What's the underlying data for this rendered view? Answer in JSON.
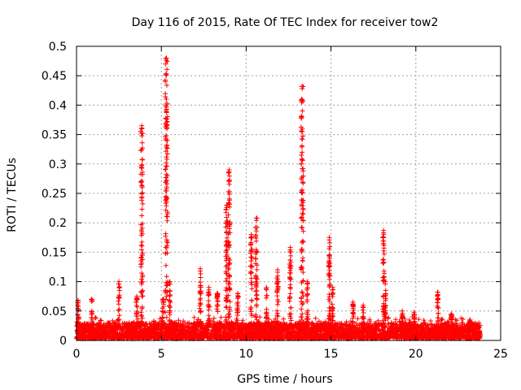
{
  "chart_data": {
    "type": "scatter",
    "title": "Day 116 of 2015, Rate Of TEC Index for receiver tow2",
    "xlabel": "GPS time / hours",
    "ylabel": "ROTI / TECUs",
    "xlim": [
      0,
      25
    ],
    "ylim": [
      0,
      0.5
    ],
    "xticks": [
      "0",
      "5",
      "10",
      "15",
      "20",
      "25"
    ],
    "yticks": [
      "0",
      "0.05",
      "0.1",
      "0.15",
      "0.2",
      "0.25",
      "0.3",
      "0.35",
      "0.4",
      "0.45",
      "0.5"
    ],
    "grid": true,
    "marker": "+",
    "series_color": "#ff0000",
    "baseline_band": {
      "x_start": 0,
      "x_end": 23.8,
      "y_min": 0.003,
      "y_max": 0.03
    },
    "peaks": [
      {
        "x": 0.1,
        "y": 0.068
      },
      {
        "x": 0.9,
        "y": 0.07
      },
      {
        "x": 2.5,
        "y": 0.1
      },
      {
        "x": 3.55,
        "y": 0.075
      },
      {
        "x": 3.85,
        "y": 0.365
      },
      {
        "x": 5.1,
        "y": 0.07
      },
      {
        "x": 5.3,
        "y": 0.48
      },
      {
        "x": 5.5,
        "y": 0.1
      },
      {
        "x": 7.3,
        "y": 0.122
      },
      {
        "x": 7.8,
        "y": 0.09
      },
      {
        "x": 8.3,
        "y": 0.08
      },
      {
        "x": 8.85,
        "y": 0.23
      },
      {
        "x": 9.0,
        "y": 0.29
      },
      {
        "x": 9.5,
        "y": 0.08
      },
      {
        "x": 10.3,
        "y": 0.18
      },
      {
        "x": 10.6,
        "y": 0.208
      },
      {
        "x": 11.2,
        "y": 0.09
      },
      {
        "x": 11.85,
        "y": 0.12
      },
      {
        "x": 12.6,
        "y": 0.158
      },
      {
        "x": 13.3,
        "y": 0.432
      },
      {
        "x": 13.6,
        "y": 0.1
      },
      {
        "x": 14.9,
        "y": 0.175
      },
      {
        "x": 15.1,
        "y": 0.09
      },
      {
        "x": 16.3,
        "y": 0.065
      },
      {
        "x": 16.9,
        "y": 0.06
      },
      {
        "x": 18.1,
        "y": 0.187
      },
      {
        "x": 18.2,
        "y": 0.1
      },
      {
        "x": 19.2,
        "y": 0.05
      },
      {
        "x": 19.9,
        "y": 0.048
      },
      {
        "x": 21.3,
        "y": 0.082
      },
      {
        "x": 22.1,
        "y": 0.045
      },
      {
        "x": 23.2,
        "y": 0.035
      }
    ]
  }
}
